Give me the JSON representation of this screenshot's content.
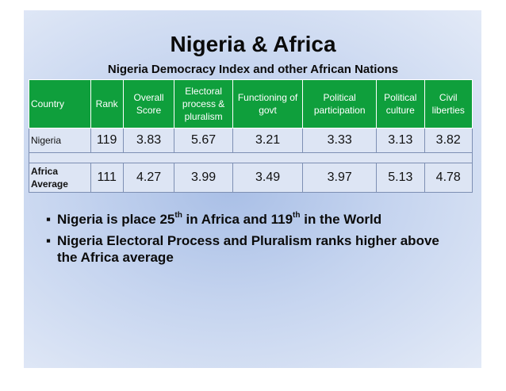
{
  "title": "Nigeria & Africa",
  "subtitle": "Nigeria Democracy Index and other African Nations",
  "table": {
    "headers": [
      "Country",
      "Rank",
      "Overall Score",
      "Electoral process & pluralism",
      "Functioning of govt",
      "Political participation",
      "Political culture",
      "Civil liberties"
    ],
    "rows": [
      {
        "country": "Nigeria",
        "values": [
          "119",
          "3.83",
          "5.67",
          "3.21",
          "3.33",
          "3.13",
          "3.82"
        ]
      },
      {
        "country": "Africa Average",
        "values": [
          "111",
          "4.27",
          "3.99",
          "3.49",
          "3.97",
          "5.13",
          "4.78"
        ]
      }
    ]
  },
  "bullets": {
    "b1_pre": "Nigeria is place 25",
    "b1_sup1": "th",
    "b1_mid": " in Africa and 119",
    "b1_sup2": "th",
    "b1_post": " in the World",
    "b2": "Nigeria Electoral Process and Pluralism ranks higher above the Africa average"
  }
}
